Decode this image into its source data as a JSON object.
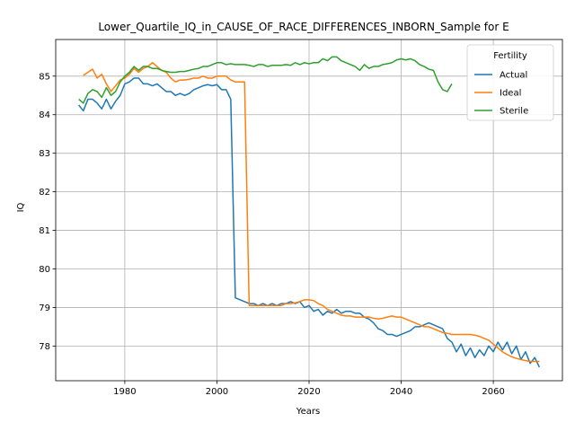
{
  "chart_data": {
    "type": "line",
    "title": "Lower_Quartile_IQ_in_CAUSE_OF_RACE_DIFFERENCES_INBORN_Sample for E",
    "xlabel": "Years",
    "ylabel": "IQ",
    "xlim": [
      1965,
      2075
    ],
    "ylim": [
      77.1,
      85.95
    ],
    "xticks": [
      1980,
      2000,
      2020,
      2040,
      2060
    ],
    "yticks": [
      78,
      79,
      80,
      81,
      82,
      83,
      84,
      85
    ],
    "grid": true,
    "legend": {
      "title": "Fertility",
      "position": "top-right"
    },
    "series": [
      {
        "name": "Actual",
        "color": "#1f77b4",
        "points": [
          [
            1970,
            84.25
          ],
          [
            1971,
            84.1
          ],
          [
            1972,
            84.4
          ],
          [
            1973,
            84.4
          ],
          [
            1974,
            84.3
          ],
          [
            1975,
            84.15
          ],
          [
            1976,
            84.4
          ],
          [
            1977,
            84.15
          ],
          [
            1978,
            84.35
          ],
          [
            1979,
            84.5
          ],
          [
            1980,
            84.8
          ],
          [
            1981,
            84.85
          ],
          [
            1982,
            84.95
          ],
          [
            1983,
            84.95
          ],
          [
            1984,
            84.8
          ],
          [
            1985,
            84.8
          ],
          [
            1986,
            84.75
          ],
          [
            1987,
            84.8
          ],
          [
            1988,
            84.7
          ],
          [
            1989,
            84.6
          ],
          [
            1990,
            84.6
          ],
          [
            1991,
            84.5
          ],
          [
            1992,
            84.55
          ],
          [
            1993,
            84.5
          ],
          [
            1994,
            84.55
          ],
          [
            1995,
            84.65
          ],
          [
            1996,
            84.7
          ],
          [
            1997,
            84.75
          ],
          [
            1998,
            84.78
          ],
          [
            1999,
            84.75
          ],
          [
            2000,
            84.78
          ],
          [
            2001,
            84.65
          ],
          [
            2002,
            84.65
          ],
          [
            2003,
            84.4
          ],
          [
            2004,
            79.25
          ],
          [
            2005,
            79.2
          ],
          [
            2006,
            79.15
          ],
          [
            2007,
            79.1
          ],
          [
            2008,
            79.1
          ],
          [
            2009,
            79.05
          ],
          [
            2010,
            79.1
          ],
          [
            2011,
            79.05
          ],
          [
            2012,
            79.1
          ],
          [
            2013,
            79.05
          ],
          [
            2014,
            79.1
          ],
          [
            2015,
            79.1
          ],
          [
            2016,
            79.15
          ],
          [
            2017,
            79.1
          ],
          [
            2018,
            79.15
          ],
          [
            2019,
            79.0
          ],
          [
            2020,
            79.05
          ],
          [
            2021,
            78.9
          ],
          [
            2022,
            78.95
          ],
          [
            2023,
            78.8
          ],
          [
            2024,
            78.9
          ],
          [
            2025,
            78.85
          ],
          [
            2026,
            78.95
          ],
          [
            2027,
            78.85
          ],
          [
            2028,
            78.9
          ],
          [
            2029,
            78.9
          ],
          [
            2030,
            78.85
          ],
          [
            2031,
            78.85
          ],
          [
            2032,
            78.75
          ],
          [
            2033,
            78.7
          ],
          [
            2034,
            78.6
          ],
          [
            2035,
            78.45
          ],
          [
            2036,
            78.4
          ],
          [
            2037,
            78.3
          ],
          [
            2038,
            78.3
          ],
          [
            2039,
            78.25
          ],
          [
            2040,
            78.3
          ],
          [
            2041,
            78.35
          ],
          [
            2042,
            78.4
          ],
          [
            2043,
            78.5
          ],
          [
            2044,
            78.5
          ],
          [
            2045,
            78.55
          ],
          [
            2046,
            78.6
          ],
          [
            2047,
            78.55
          ],
          [
            2048,
            78.5
          ],
          [
            2049,
            78.45
          ],
          [
            2050,
            78.2
          ],
          [
            2051,
            78.1
          ],
          [
            2052,
            77.85
          ],
          [
            2053,
            78.05
          ],
          [
            2054,
            77.75
          ],
          [
            2055,
            77.95
          ],
          [
            2056,
            77.7
          ],
          [
            2057,
            77.9
          ],
          [
            2058,
            77.75
          ],
          [
            2059,
            78.0
          ],
          [
            2060,
            77.85
          ],
          [
            2061,
            78.1
          ],
          [
            2062,
            77.9
          ],
          [
            2063,
            78.1
          ],
          [
            2064,
            77.8
          ],
          [
            2065,
            78.0
          ],
          [
            2066,
            77.65
          ],
          [
            2067,
            77.85
          ],
          [
            2068,
            77.55
          ],
          [
            2069,
            77.7
          ],
          [
            2070,
            77.45
          ]
        ]
      },
      {
        "name": "Ideal",
        "color": "#ff7f0e",
        "points": [
          [
            1971,
            85.02
          ],
          [
            1972,
            85.1
          ],
          [
            1973,
            85.18
          ],
          [
            1974,
            84.95
          ],
          [
            1975,
            85.05
          ],
          [
            1976,
            84.8
          ],
          [
            1977,
            84.6
          ],
          [
            1978,
            84.75
          ],
          [
            1979,
            84.9
          ],
          [
            1980,
            84.95
          ],
          [
            1981,
            85.05
          ],
          [
            1982,
            85.2
          ],
          [
            1983,
            85.1
          ],
          [
            1984,
            85.2
          ],
          [
            1985,
            85.25
          ],
          [
            1986,
            85.35
          ],
          [
            1987,
            85.25
          ],
          [
            1988,
            85.15
          ],
          [
            1989,
            85.1
          ],
          [
            1990,
            84.95
          ],
          [
            1991,
            84.85
          ],
          [
            1992,
            84.9
          ],
          [
            1993,
            84.9
          ],
          [
            1994,
            84.92
          ],
          [
            1995,
            84.95
          ],
          [
            1996,
            84.95
          ],
          [
            1997,
            85.0
          ],
          [
            1998,
            84.95
          ],
          [
            1999,
            84.95
          ],
          [
            2000,
            85.0
          ],
          [
            2001,
            85.0
          ],
          [
            2002,
            85.0
          ],
          [
            2003,
            84.9
          ],
          [
            2004,
            84.85
          ],
          [
            2005,
            84.85
          ],
          [
            2006,
            84.85
          ],
          [
            2007,
            79.05
          ],
          [
            2008,
            79.05
          ],
          [
            2009,
            79.05
          ],
          [
            2010,
            79.05
          ],
          [
            2011,
            79.05
          ],
          [
            2012,
            79.05
          ],
          [
            2013,
            79.05
          ],
          [
            2014,
            79.05
          ],
          [
            2015,
            79.1
          ],
          [
            2016,
            79.1
          ],
          [
            2017,
            79.12
          ],
          [
            2018,
            79.15
          ],
          [
            2019,
            79.2
          ],
          [
            2020,
            79.2
          ],
          [
            2021,
            79.18
          ],
          [
            2022,
            79.1
          ],
          [
            2023,
            79.05
          ],
          [
            2024,
            78.95
          ],
          [
            2025,
            78.9
          ],
          [
            2026,
            78.85
          ],
          [
            2027,
            78.8
          ],
          [
            2028,
            78.78
          ],
          [
            2029,
            78.78
          ],
          [
            2030,
            78.75
          ],
          [
            2031,
            78.75
          ],
          [
            2032,
            78.75
          ],
          [
            2033,
            78.75
          ],
          [
            2034,
            78.72
          ],
          [
            2035,
            78.7
          ],
          [
            2036,
            78.72
          ],
          [
            2037,
            78.75
          ],
          [
            2038,
            78.78
          ],
          [
            2039,
            78.75
          ],
          [
            2040,
            78.75
          ],
          [
            2041,
            78.7
          ],
          [
            2042,
            78.65
          ],
          [
            2043,
            78.6
          ],
          [
            2044,
            78.55
          ],
          [
            2045,
            78.5
          ],
          [
            2046,
            78.5
          ],
          [
            2047,
            78.45
          ],
          [
            2048,
            78.4
          ],
          [
            2049,
            78.35
          ],
          [
            2050,
            78.33
          ],
          [
            2051,
            78.3
          ],
          [
            2052,
            78.3
          ],
          [
            2053,
            78.3
          ],
          [
            2054,
            78.3
          ],
          [
            2055,
            78.3
          ],
          [
            2056,
            78.28
          ],
          [
            2057,
            78.25
          ],
          [
            2058,
            78.2
          ],
          [
            2059,
            78.15
          ],
          [
            2060,
            78.05
          ],
          [
            2061,
            77.95
          ],
          [
            2062,
            77.85
          ],
          [
            2063,
            77.78
          ],
          [
            2064,
            77.72
          ],
          [
            2065,
            77.68
          ],
          [
            2066,
            77.65
          ],
          [
            2067,
            77.62
          ],
          [
            2068,
            77.6
          ],
          [
            2069,
            77.6
          ],
          [
            2070,
            77.6
          ]
        ]
      },
      {
        "name": "Sterile",
        "color": "#2ca02c",
        "points": [
          [
            1970,
            84.4
          ],
          [
            1971,
            84.3
          ],
          [
            1972,
            84.55
          ],
          [
            1973,
            84.65
          ],
          [
            1974,
            84.6
          ],
          [
            1975,
            84.45
          ],
          [
            1976,
            84.7
          ],
          [
            1977,
            84.5
          ],
          [
            1978,
            84.6
          ],
          [
            1979,
            84.85
          ],
          [
            1980,
            85.0
          ],
          [
            1981,
            85.1
          ],
          [
            1982,
            85.25
          ],
          [
            1983,
            85.15
          ],
          [
            1984,
            85.25
          ],
          [
            1985,
            85.25
          ],
          [
            1986,
            85.2
          ],
          [
            1987,
            85.2
          ],
          [
            1988,
            85.15
          ],
          [
            1989,
            85.12
          ],
          [
            1990,
            85.1
          ],
          [
            1991,
            85.1
          ],
          [
            1992,
            85.12
          ],
          [
            1993,
            85.12
          ],
          [
            1994,
            85.15
          ],
          [
            1995,
            85.18
          ],
          [
            1996,
            85.2
          ],
          [
            1997,
            85.25
          ],
          [
            1998,
            85.25
          ],
          [
            1999,
            85.3
          ],
          [
            2000,
            85.35
          ],
          [
            2001,
            85.35
          ],
          [
            2002,
            85.3
          ],
          [
            2003,
            85.32
          ],
          [
            2004,
            85.3
          ],
          [
            2005,
            85.3
          ],
          [
            2006,
            85.3
          ],
          [
            2007,
            85.28
          ],
          [
            2008,
            85.25
          ],
          [
            2009,
            85.3
          ],
          [
            2010,
            85.3
          ],
          [
            2011,
            85.25
          ],
          [
            2012,
            85.28
          ],
          [
            2013,
            85.28
          ],
          [
            2014,
            85.28
          ],
          [
            2015,
            85.3
          ],
          [
            2016,
            85.28
          ],
          [
            2017,
            85.35
          ],
          [
            2018,
            85.3
          ],
          [
            2019,
            85.35
          ],
          [
            2020,
            85.32
          ],
          [
            2021,
            85.35
          ],
          [
            2022,
            85.35
          ],
          [
            2023,
            85.45
          ],
          [
            2024,
            85.4
          ],
          [
            2025,
            85.5
          ],
          [
            2026,
            85.5
          ],
          [
            2027,
            85.4
          ],
          [
            2028,
            85.35
          ],
          [
            2029,
            85.3
          ],
          [
            2030,
            85.25
          ],
          [
            2031,
            85.15
          ],
          [
            2032,
            85.3
          ],
          [
            2033,
            85.2
          ],
          [
            2034,
            85.25
          ],
          [
            2035,
            85.25
          ],
          [
            2036,
            85.3
          ],
          [
            2037,
            85.32
          ],
          [
            2038,
            85.35
          ],
          [
            2039,
            85.42
          ],
          [
            2040,
            85.45
          ],
          [
            2041,
            85.42
          ],
          [
            2042,
            85.45
          ],
          [
            2043,
            85.4
          ],
          [
            2044,
            85.3
          ],
          [
            2045,
            85.25
          ],
          [
            2046,
            85.18
          ],
          [
            2047,
            85.15
          ],
          [
            2048,
            84.85
          ],
          [
            2049,
            84.65
          ],
          [
            2050,
            84.6
          ],
          [
            2051,
            84.8
          ]
        ]
      }
    ]
  }
}
